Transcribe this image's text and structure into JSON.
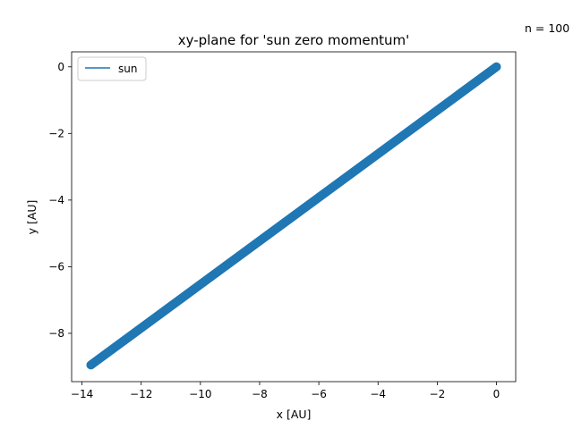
{
  "chart_data": {
    "type": "line",
    "title": "xy-plane for 'sun zero momentum'",
    "xlabel": "x [AU]",
    "ylabel": "y [AU]",
    "annotation": "n = 100",
    "xlim": [
      -14.35,
      0.65
    ],
    "ylim": [
      -9.45,
      0.45
    ],
    "xticks": [
      -14,
      -12,
      -10,
      -8,
      -6,
      -4,
      -2,
      0
    ],
    "yticks": [
      0,
      -2,
      -4,
      -6,
      -8
    ],
    "xtick_labels": [
      "−14",
      "−12",
      "−10",
      "−8",
      "−6",
      "−4",
      "−2",
      "0"
    ],
    "ytick_labels": [
      "0",
      "−2",
      "−4",
      "−6",
      "−8"
    ],
    "grid": false,
    "legend": {
      "placement": "top-left",
      "entries": [
        "sun"
      ]
    },
    "series": [
      {
        "name": "sun",
        "color": "#1f77b4",
        "x_start": 0.0,
        "y_start": 0.0,
        "x_end": -13.7,
        "y_end": -8.95
      }
    ]
  }
}
